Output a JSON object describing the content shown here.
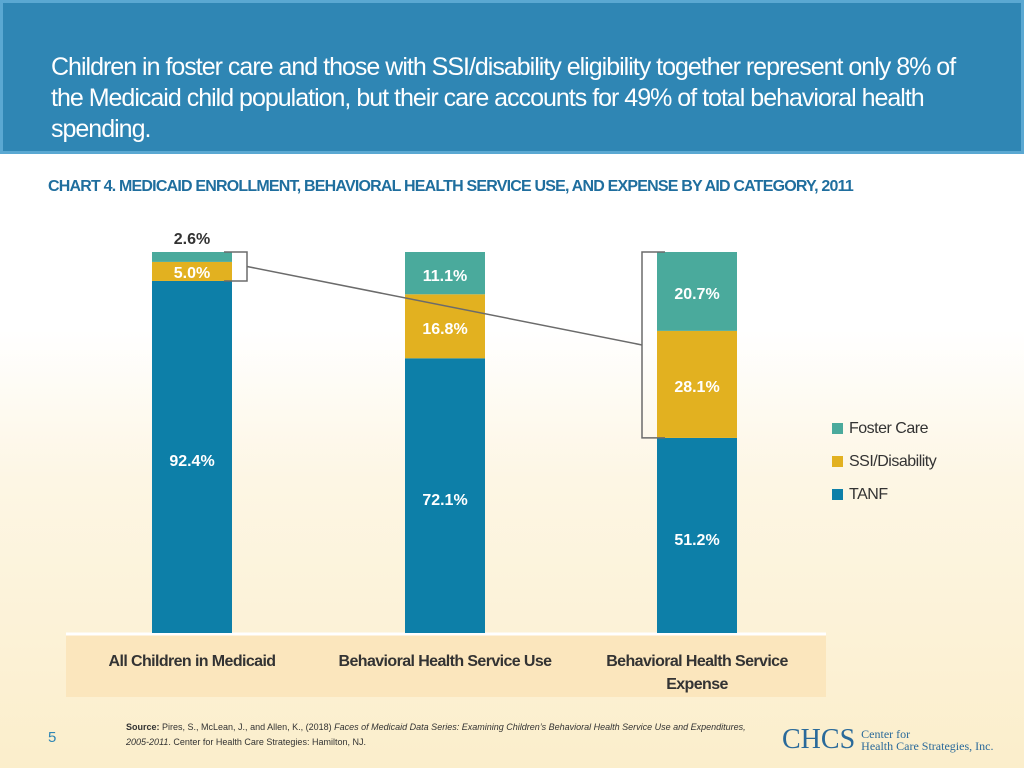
{
  "header": {
    "title": "Children in foster care and those with SSI/disability eligibility together represent only 8% of the Medicaid child population, but their care accounts for 49% of total behavioral health spending."
  },
  "chart_data": {
    "type": "bar",
    "stacked": true,
    "title": "CHART 4. MEDICAID ENROLLMENT, BEHAVIORAL HEALTH SERVICE USE, AND EXPENSE BY AID CATEGORY, 2011",
    "categories": [
      "All Children in Medicaid",
      "Behavioral Health Service Use",
      "Behavioral Health Service Expense"
    ],
    "series": [
      {
        "name": "TANF",
        "color": "#0d7fa8",
        "values": [
          92.4,
          72.1,
          51.2
        ],
        "labels": [
          "92.4%",
          "72.1%",
          "51.2%"
        ]
      },
      {
        "name": "SSI/Disability",
        "color": "#e2b120",
        "values": [
          5.0,
          16.8,
          28.1
        ],
        "labels": [
          "5.0%",
          "16.8%",
          "28.1%"
        ]
      },
      {
        "name": "Foster Care",
        "color": "#4aaa9c",
        "values": [
          2.6,
          11.1,
          20.7
        ],
        "labels": [
          "2.6%",
          "11.1%",
          "20.7%"
        ]
      }
    ],
    "legend_order": [
      "Foster Care",
      "SSI/Disability",
      "TANF"
    ],
    "ylim": [
      0,
      100
    ],
    "legend_position": "right"
  },
  "footer": {
    "source_label": "Source:",
    "source_authors": "Pires, S., McLean, J., and Allen, K., (2018)",
    "source_title": "Faces of Medicaid Data Series: Examining Children’s Behavioral Health Service Use and Expenditures, 2005-2011",
    "source_publisher": ". Center for Health Care Strategies: Hamilton, NJ.",
    "page_number": "5"
  },
  "logo": {
    "mark": "CHCS",
    "line1": "Center for",
    "line2": "Health Care Strategies, Inc."
  }
}
